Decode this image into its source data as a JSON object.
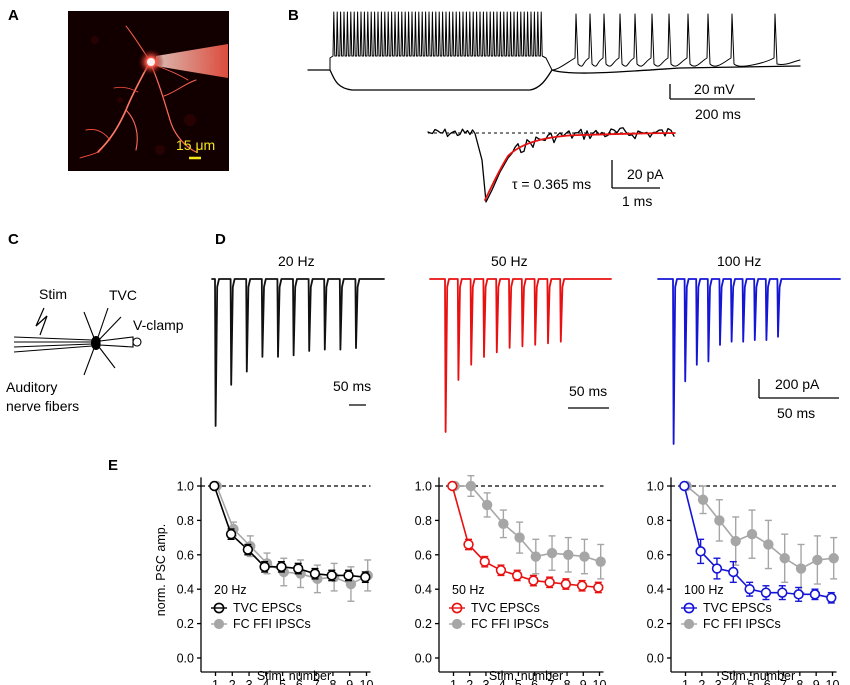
{
  "panels": {
    "a": {
      "label": "A",
      "scale_bar": "15 μm"
    },
    "b": {
      "label": "B",
      "scale_top_v": "20 mV",
      "scale_top_t": "200 ms",
      "scale_bot_i": "20 pA",
      "scale_bot_t": "1 ms",
      "tau": "τ = 0.365 ms"
    },
    "c": {
      "label": "C",
      "stim": "Stim",
      "tvc": "TVC",
      "vclamp": "V-clamp",
      "fibers_line1": "Auditory",
      "fibers_line2": "nerve fibers"
    },
    "d": {
      "label": "D",
      "trains": [
        {
          "title": "20 Hz",
          "color": "#111111",
          "scale_t": "50 ms"
        },
        {
          "title": "50 Hz",
          "color": "#e81010",
          "scale_t": "50 ms"
        },
        {
          "title": "100 Hz",
          "color": "#1515d6",
          "scale_t": "50 ms",
          "scale_i": "200 pA"
        }
      ]
    },
    "e": {
      "label": "E"
    }
  },
  "chart_data": [
    {
      "type": "line",
      "title": "20 Hz",
      "accent": "#000000",
      "xlabel": "Stim. number",
      "ylabel": "norm. PSC amp.",
      "x": [
        1,
        2,
        3,
        4,
        5,
        6,
        7,
        8,
        9,
        10
      ],
      "ylim": [
        0,
        1.05
      ],
      "yticks": [
        "0.0",
        "0.2",
        "0.4",
        "0.6",
        "0.8",
        "1.0"
      ],
      "reference_line": 1.0,
      "series": [
        {
          "name": "TVC EPSCs",
          "values": [
            1.0,
            0.72,
            0.63,
            0.53,
            0.53,
            0.52,
            0.49,
            0.48,
            0.48,
            0.47
          ],
          "errors": [
            0,
            0.03,
            0.03,
            0.03,
            0.03,
            0.03,
            0.03,
            0.03,
            0.03,
            0.03
          ]
        },
        {
          "name": "FC FFI IPSCs",
          "values": [
            1.0,
            0.75,
            0.65,
            0.55,
            0.5,
            0.49,
            0.46,
            0.47,
            0.43,
            0.48
          ],
          "errors": [
            0,
            0.04,
            0.06,
            0.06,
            0.08,
            0.08,
            0.08,
            0.08,
            0.1,
            0.09
          ]
        }
      ]
    },
    {
      "type": "line",
      "title": "50 Hz",
      "accent": "#e81010",
      "xlabel": "Stim. number",
      "ylabel": "norm. PSC amp.",
      "x": [
        1,
        2,
        3,
        4,
        5,
        6,
        7,
        8,
        9,
        10
      ],
      "ylim": [
        0,
        1.05
      ],
      "yticks": [
        "0.0",
        "0.2",
        "0.4",
        "0.6",
        "0.8",
        "1.0"
      ],
      "reference_line": 1.0,
      "series": [
        {
          "name": "TVC EPSCs",
          "values": [
            1.0,
            0.66,
            0.56,
            0.51,
            0.48,
            0.45,
            0.44,
            0.43,
            0.42,
            0.41
          ],
          "errors": [
            0,
            0.03,
            0.03,
            0.03,
            0.03,
            0.03,
            0.03,
            0.03,
            0.03,
            0.03
          ]
        },
        {
          "name": "FC FFI IPSCs",
          "values": [
            1.0,
            1.0,
            0.89,
            0.78,
            0.7,
            0.59,
            0.61,
            0.6,
            0.59,
            0.56
          ],
          "errors": [
            0,
            0.06,
            0.07,
            0.08,
            0.09,
            0.1,
            0.1,
            0.1,
            0.1,
            0.1
          ]
        }
      ]
    },
    {
      "type": "line",
      "title": "100 Hz",
      "accent": "#1515d6",
      "xlabel": "Stim. number",
      "ylabel": "norm. PSC amp.",
      "x": [
        1,
        2,
        3,
        4,
        5,
        6,
        7,
        8,
        9,
        10
      ],
      "ylim": [
        0,
        1.05
      ],
      "yticks": [
        "0.0",
        "0.2",
        "0.4",
        "0.6",
        "0.8",
        "1.0"
      ],
      "reference_line": 1.0,
      "series": [
        {
          "name": "TVC EPSCs",
          "values": [
            1.0,
            0.62,
            0.52,
            0.5,
            0.4,
            0.38,
            0.38,
            0.37,
            0.37,
            0.35
          ],
          "errors": [
            0,
            0.07,
            0.06,
            0.06,
            0.04,
            0.04,
            0.04,
            0.04,
            0.03,
            0.03
          ]
        },
        {
          "name": "FC FFI IPSCs",
          "values": [
            1.0,
            0.92,
            0.8,
            0.68,
            0.72,
            0.66,
            0.58,
            0.52,
            0.57,
            0.58
          ],
          "errors": [
            0,
            0.08,
            0.12,
            0.14,
            0.14,
            0.14,
            0.14,
            0.14,
            0.14,
            0.12
          ]
        }
      ]
    }
  ]
}
